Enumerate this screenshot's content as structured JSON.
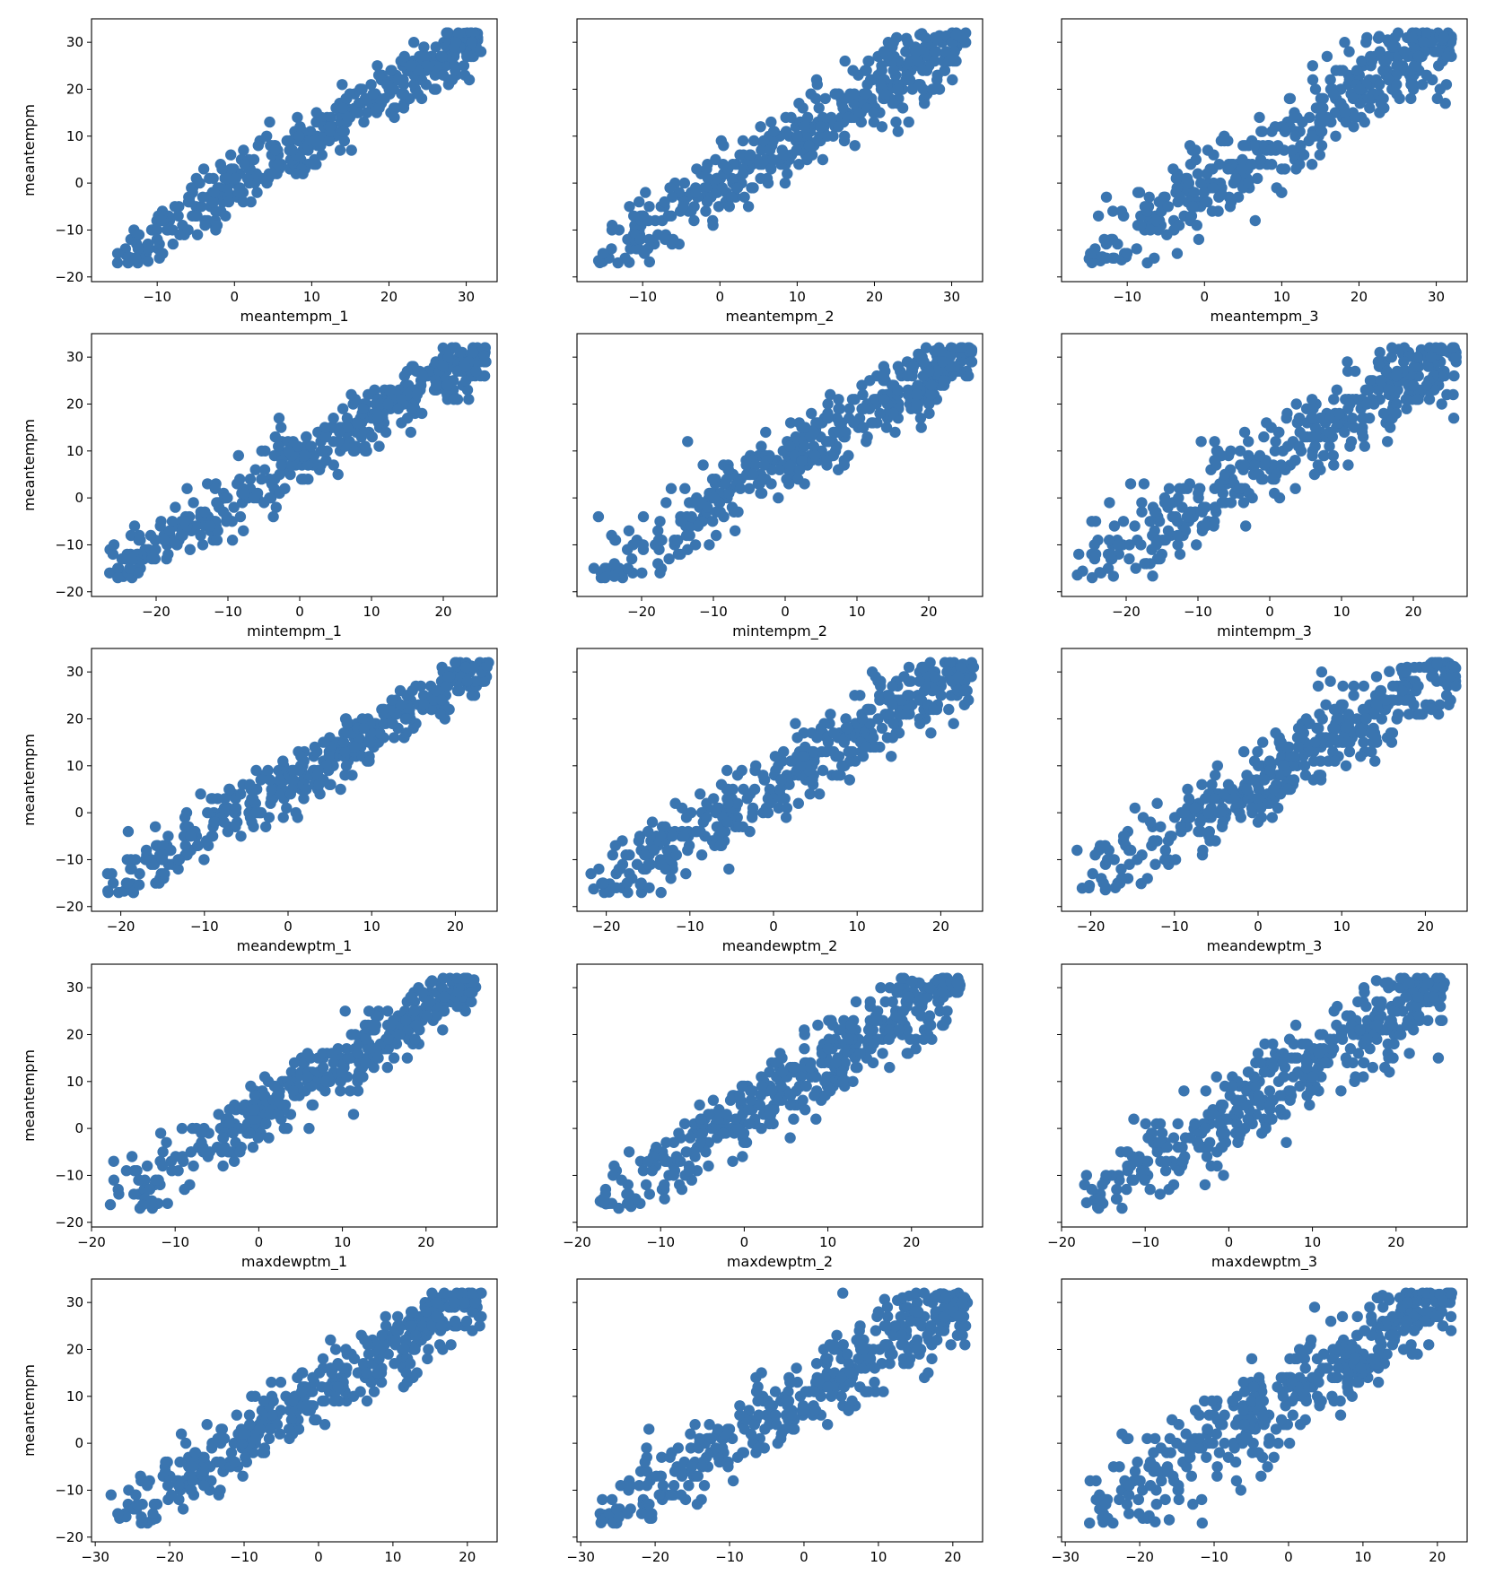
{
  "chart_data": {
    "type": "scatter",
    "layout": "grid",
    "rows": 5,
    "cols": 3,
    "shared_ylabel": "meantempm",
    "ylim": [
      -21,
      35
    ],
    "yticks": [
      -20,
      -10,
      0,
      10,
      20,
      30
    ],
    "marker_color": "#3a75b0",
    "grid": false,
    "rows_spec": [
      {
        "xlim": [
          -18.5,
          34
        ],
        "xticks": [
          -10,
          0,
          10,
          20,
          30
        ],
        "xrange": [
          -16,
          32
        ],
        "spread": 0.32,
        "xlabels": [
          "meantempm_1",
          "meantempm_2",
          "meantempm_3"
        ]
      },
      {
        "xlim": [
          -29,
          27.5
        ],
        "xticks": [
          -20,
          -10,
          0,
          10,
          20
        ],
        "xrange": [
          -27,
          26
        ],
        "spread": 0.3,
        "xlabels": [
          "mintempm_1",
          "mintempm_2",
          "mintempm_3"
        ]
      },
      {
        "xlim": [
          -23.5,
          25
        ],
        "xticks": [
          -20,
          -10,
          0,
          10,
          20
        ],
        "xrange": [
          -22,
          24
        ],
        "spread": 0.3,
        "xlabels": [
          "meandewptm_1",
          "meandewptm_2",
          "meandewptm_3"
        ]
      },
      {
        "xlim": [
          -20,
          28.5
        ],
        "xticks": [
          -20,
          -10,
          0,
          10,
          20
        ],
        "xrange": [
          -18,
          26
        ],
        "spread": 0.32,
        "xlabels": [
          "maxdewptm_1",
          "maxdewptm_2",
          "maxdewptm_3"
        ]
      },
      {
        "xlim": [
          -30.5,
          24
        ],
        "xticks": [
          -30,
          -20,
          -10,
          0,
          10,
          20
        ],
        "xrange": [
          -28,
          22
        ],
        "spread": 0.34,
        "xlabels": [
          "",
          "",
          ""
        ]
      }
    ],
    "points_per_panel": 420,
    "y_data_range": [
      -17,
      32
    ]
  }
}
